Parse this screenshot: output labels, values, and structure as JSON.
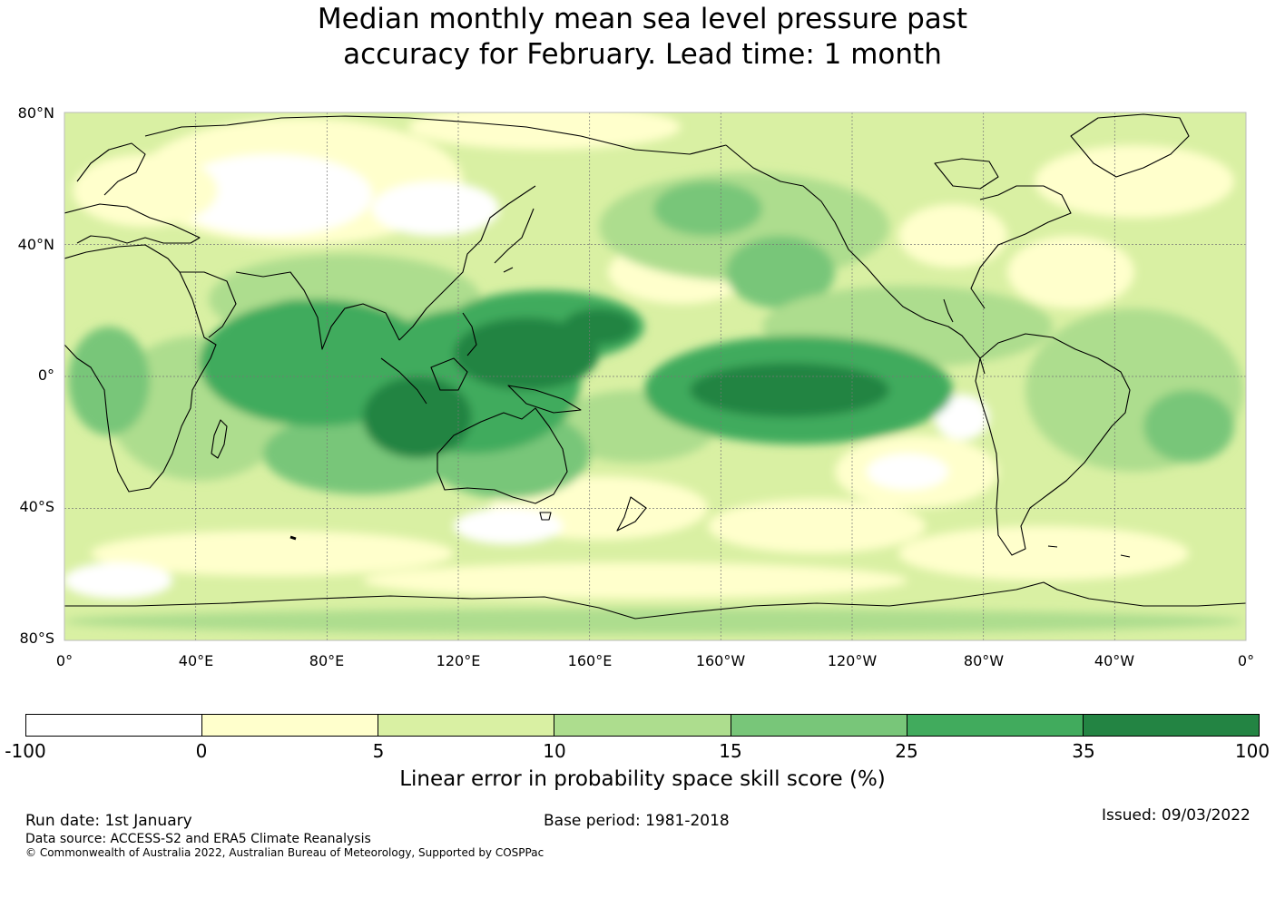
{
  "title": {
    "line1": "Median monthly mean sea level pressure past",
    "line2": "accuracy for February. Lead time: 1 month"
  },
  "map": {
    "lat_labels": [
      "80°N",
      "40°N",
      "0°",
      "40°S",
      "80°S"
    ],
    "lon_labels": [
      "0°",
      "40°E",
      "80°E",
      "120°E",
      "160°E",
      "160°W",
      "120°W",
      "80°W",
      "40°W",
      "0°"
    ]
  },
  "colorbar": {
    "ticks": [
      "-100",
      "0",
      "5",
      "10",
      "15",
      "25",
      "35",
      "100"
    ],
    "colors": [
      "#ffffff",
      "#ffffcc",
      "#d9f0a3",
      "#addd8e",
      "#78c679",
      "#41ab5d",
      "#238443"
    ],
    "label": "Linear error in probability space skill score (%)"
  },
  "footer": {
    "run_date": "Run date: 1st January",
    "base_period": "Base period: 1981-2018",
    "issued": "Issued: 09/03/2022",
    "data_source": "Data source: ACCESS-S2 and ERA5 Climate Reanalysis",
    "copyright": "© Commonwealth of Australia 2022, Australian Bureau of Meteorology, Supported by COSPPac"
  }
}
